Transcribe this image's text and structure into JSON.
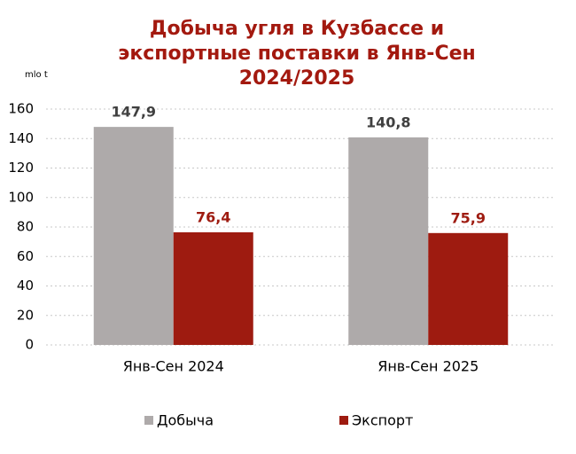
{
  "chart_data": {
    "type": "bar",
    "title": [
      "Добыча угля в Кузбассе и",
      "экспортные поставки в Янв-Сен",
      "2024/2025"
    ],
    "y_label": "mlo t",
    "categories": [
      "Янв-Сен 2024",
      "Янв-Сен 2025"
    ],
    "series": [
      {
        "name": "Добыча",
        "color": "#aeaaaa",
        "label_color": "#404040",
        "values": [
          147.9,
          140.8
        ],
        "value_labels": [
          "147,9",
          "140,8"
        ]
      },
      {
        "name": "Экспорт",
        "color": "#9e1b10",
        "label_color": "#9e1b10",
        "values": [
          76.4,
          75.9
        ],
        "value_labels": [
          "76,4",
          "75,9"
        ]
      }
    ],
    "ylim": [
      0,
      160
    ],
    "yticks": [
      0,
      20,
      40,
      60,
      80,
      100,
      120,
      140,
      160
    ],
    "grid": true,
    "legend": "bottom"
  }
}
